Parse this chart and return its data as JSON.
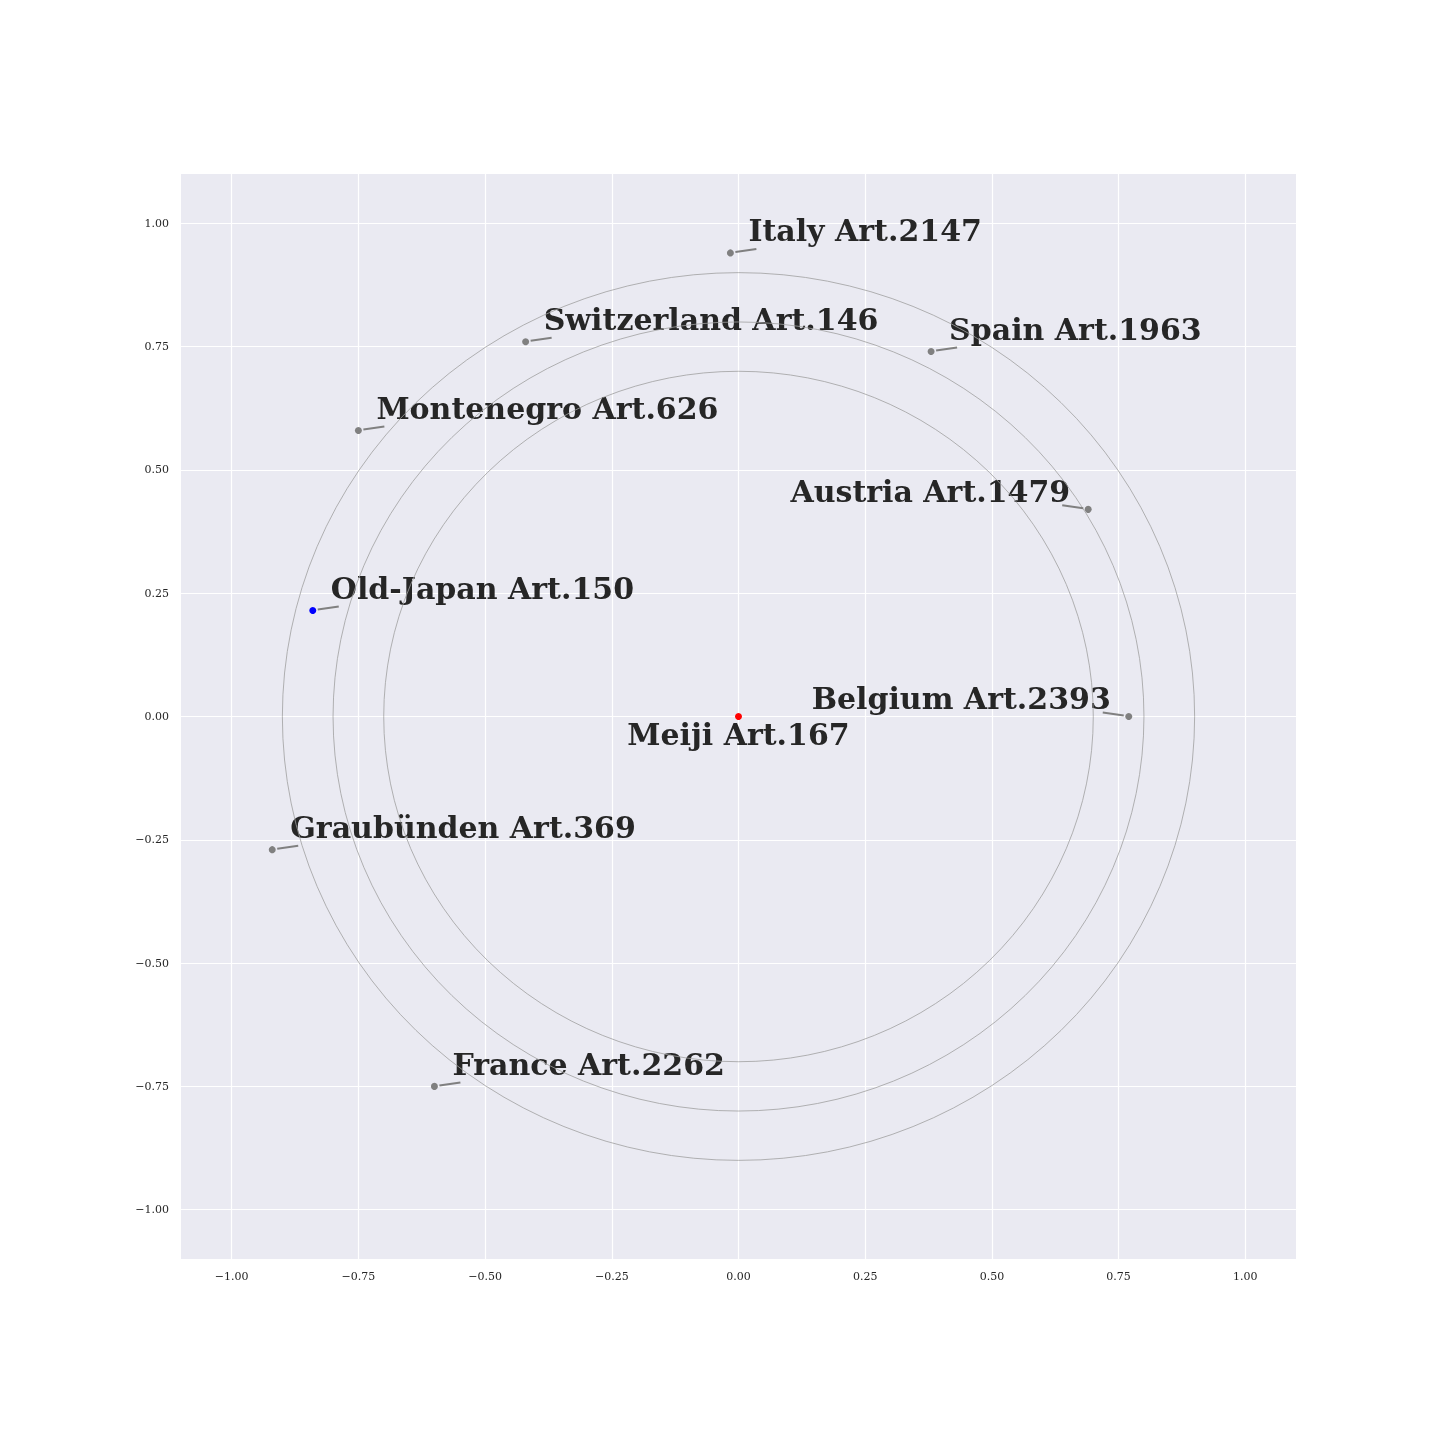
{
  "chart_data": {
    "type": "scatter",
    "xlim": [
      -1.1,
      1.1
    ],
    "ylim": [
      -1.1,
      1.1
    ],
    "xticks": [
      {
        "value": -1,
        "label": "−1.00"
      },
      {
        "value": -0.75,
        "label": "−0.75"
      },
      {
        "value": -0.5,
        "label": "−0.50"
      },
      {
        "value": -0.25,
        "label": "−0.25"
      },
      {
        "value": 0,
        "label": "0.00"
      },
      {
        "value": 0.25,
        "label": "0.25"
      },
      {
        "value": 0.5,
        "label": "0.50"
      },
      {
        "value": 0.75,
        "label": "0.75"
      },
      {
        "value": 1,
        "label": "1.00"
      }
    ],
    "yticks": [
      {
        "value": -1,
        "label": "−1.00"
      },
      {
        "value": -0.75,
        "label": "−0.75"
      },
      {
        "value": -0.5,
        "label": "−0.50"
      },
      {
        "value": -0.25,
        "label": "−0.25"
      },
      {
        "value": 0,
        "label": "0.00"
      },
      {
        "value": 0.25,
        "label": "0.25"
      },
      {
        "value": 0.5,
        "label": "0.50"
      },
      {
        "value": 0.75,
        "label": "0.75"
      },
      {
        "value": 1,
        "label": "1.00"
      }
    ],
    "grid": true,
    "series": [
      {
        "x": [
          -0.016,
          -0.42,
          0.38,
          -0.75,
          0.69,
          -0.84,
          0,
          0.77,
          -0.92,
          -0.6
        ],
        "values": [
          0.94,
          0.76,
          0.74,
          0.58,
          0.42,
          0.215,
          0,
          0,
          -0.27,
          -0.75
        ],
        "colors": [
          "#808080",
          "#808080",
          "#808080",
          "#808080",
          "#808080",
          "#0000ff",
          "#ff0000",
          "#808080",
          "#808080",
          "#808080"
        ]
      }
    ],
    "annotations": [
      {
        "text": "Italy Art.2147",
        "x": -0.016,
        "y": 0.94
      },
      {
        "text": "Switzerland Art.146",
        "x": -0.42,
        "y": 0.76
      },
      {
        "text": "Spain Art.1963",
        "x": 0.38,
        "y": 0.74
      },
      {
        "text": "Montenegro Art.626",
        "x": -0.75,
        "y": 0.58
      },
      {
        "text": "Austria Art.1479",
        "x": 0.69,
        "y": 0.42
      },
      {
        "text": "Old-Japan Art.150",
        "x": -0.84,
        "y": 0.215
      },
      {
        "text": "Meiji Art.167",
        "x": 0,
        "y": 0
      },
      {
        "text": "Belgium Art.2393",
        "x": 0.77,
        "y": 0
      },
      {
        "text": "Graubünden Art.369",
        "x": -0.92,
        "y": -0.27
      },
      {
        "text": "France Art.2262",
        "x": -0.6,
        "y": -0.75
      }
    ]
  }
}
